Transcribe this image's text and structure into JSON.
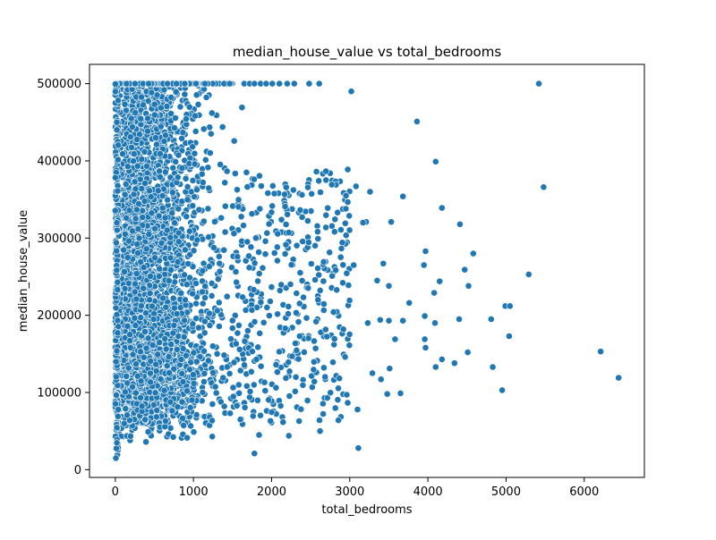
{
  "colors": {
    "marker_fill": "#1f77b4",
    "marker_edge": "#ffffff",
    "axes": "#000000",
    "background": "#ffffff"
  },
  "chart_data": {
    "type": "scatter",
    "title": "median_house_value vs total_bedrooms",
    "xlabel": "total_bedrooms",
    "ylabel": "median_house_value",
    "xlim": [
      -330,
      6770
    ],
    "ylim": [
      -10000,
      525000
    ],
    "x_ticks": [
      0,
      1000,
      2000,
      3000,
      4000,
      5000,
      6000
    ],
    "y_ticks": [
      0,
      100000,
      200000,
      300000,
      400000,
      500000
    ],
    "grid": false,
    "legend": "none",
    "capped_value": 500001,
    "x_ticklabels": [
      "0",
      "1000",
      "2000",
      "3000",
      "4000",
      "5000",
      "6000"
    ],
    "y_ticklabels": [
      "0",
      "100000",
      "200000",
      "300000",
      "400000",
      "500000"
    ],
    "sparse_points": [
      [
        5420,
        500001
      ],
      [
        3020,
        490000
      ],
      [
        3860,
        451000
      ],
      [
        4100,
        399000
      ],
      [
        5480,
        366000
      ],
      [
        3680,
        354000
      ],
      [
        4180,
        339000
      ],
      [
        3530,
        321000
      ],
      [
        4410,
        318000
      ],
      [
        4580,
        280000
      ],
      [
        3970,
        283000
      ],
      [
        3950,
        265000
      ],
      [
        5290,
        253000
      ],
      [
        4470,
        259000
      ],
      [
        4150,
        244000
      ],
      [
        4520,
        238000
      ],
      [
        3500,
        238000
      ],
      [
        3350,
        245000
      ],
      [
        3760,
        216000
      ],
      [
        4080,
        229000
      ],
      [
        4990,
        212000
      ],
      [
        5050,
        212000
      ],
      [
        3960,
        199000
      ],
      [
        4090,
        190000
      ],
      [
        4400,
        195000
      ],
      [
        4810,
        195000
      ],
      [
        3680,
        193000
      ],
      [
        3500,
        193000
      ],
      [
        3230,
        190000
      ],
      [
        5040,
        173000
      ],
      [
        3580,
        169000
      ],
      [
        3960,
        169000
      ],
      [
        3970,
        158000
      ],
      [
        4510,
        152000
      ],
      [
        6210,
        153000
      ],
      [
        4180,
        143000
      ],
      [
        4340,
        138000
      ],
      [
        3510,
        131000
      ],
      [
        4100,
        133000
      ],
      [
        4830,
        133000
      ],
      [
        3290,
        125000
      ],
      [
        3400,
        117000
      ],
      [
        6440,
        119000
      ],
      [
        3480,
        98000
      ],
      [
        3650,
        99000
      ],
      [
        4950,
        103000
      ],
      [
        3100,
        78000
      ],
      [
        3110,
        28000
      ],
      [
        2620,
        50000
      ],
      [
        2220,
        44000
      ],
      [
        1780,
        21000
      ],
      [
        1840,
        45000
      ],
      [
        3210,
        321000
      ],
      [
        3430,
        267000
      ],
      [
        3260,
        360000
      ],
      [
        3080,
        367000
      ],
      [
        3050,
        265000
      ],
      [
        3390,
        194000
      ],
      [
        3170,
        320000
      ],
      [
        2950,
        338000
      ]
    ],
    "top_cap_row_x": [
      1650,
      1720,
      1780,
      1860,
      1930,
      2010,
      2100,
      2200,
      2290,
      2480,
      2610
    ],
    "dense_region": {
      "x_range": [
        0,
        3000
      ],
      "y_range": [
        14999,
        500001
      ],
      "approx_point_count": 20000,
      "note": "data truncated to what is visible"
    }
  }
}
